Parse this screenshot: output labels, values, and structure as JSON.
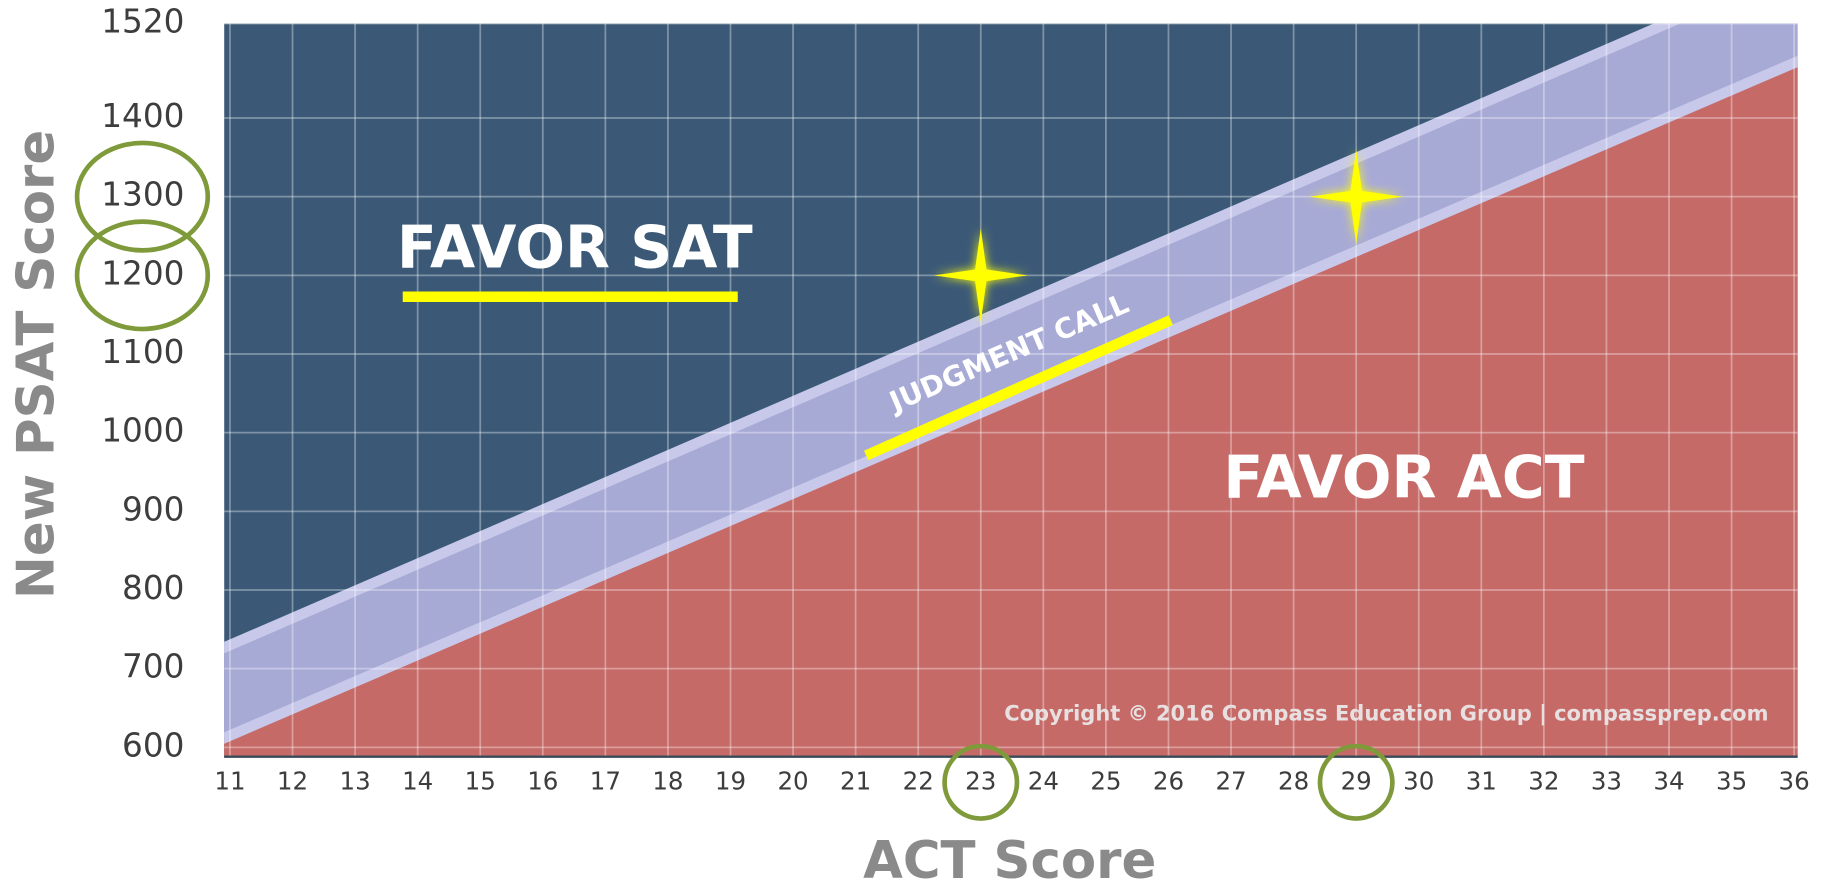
{
  "chart_data": {
    "type": "region",
    "xlabel": "ACT Score",
    "ylabel": "New PSAT Score",
    "xlim": [
      11,
      36
    ],
    "ylim": [
      600,
      1520
    ],
    "xticks": [
      11,
      12,
      13,
      14,
      15,
      16,
      17,
      18,
      19,
      20,
      21,
      22,
      23,
      24,
      25,
      26,
      27,
      28,
      29,
      30,
      31,
      32,
      33,
      34,
      35,
      36
    ],
    "yticks": [
      600,
      700,
      800,
      900,
      1000,
      1100,
      1200,
      1300,
      1400,
      1520
    ],
    "grid": true,
    "colors": {
      "upper_region": "#3b5977",
      "lower_region": "#c66a68",
      "band": "#a8aad6",
      "band_edge": "#c8c9ea"
    },
    "regions": [
      {
        "label": "FAVOR SAT"
      },
      {
        "label": "FAVOR ACT"
      }
    ],
    "bands": [
      {
        "label": "JUDGMENT CALL",
        "x": [
          11,
          36
        ],
        "lower": [
          615,
          1470
        ],
        "upper": [
          730,
          1590
        ]
      }
    ],
    "highlights": [
      {
        "x": 23,
        "y": 1200
      },
      {
        "x": 29,
        "y": 1300
      }
    ],
    "highlight_color": "#ffff00",
    "circle_color": "#7f9a3a",
    "annotation": "Copyright © 2016 Compass Education Group | compassprep.com"
  }
}
